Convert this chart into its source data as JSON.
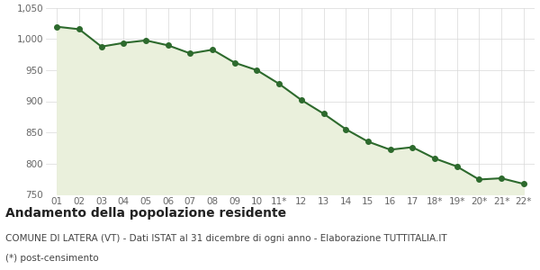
{
  "x_labels": [
    "01",
    "02",
    "03",
    "04",
    "05",
    "06",
    "07",
    "08",
    "09",
    "10",
    "11*",
    "12",
    "13",
    "14",
    "15",
    "16",
    "17",
    "18*",
    "19*",
    "20*",
    "21*",
    "22*"
  ],
  "values": [
    1020,
    1016,
    988,
    994,
    998,
    990,
    977,
    983,
    962,
    950,
    928,
    902,
    880,
    855,
    835,
    822,
    826,
    808,
    795,
    774,
    776,
    767
  ],
  "line_color": "#2d6a2d",
  "fill_color": "#eaf0dc",
  "marker": "o",
  "marker_size": 4,
  "linewidth": 1.5,
  "ylim": [
    750,
    1050
  ],
  "yticks": [
    750,
    800,
    850,
    900,
    950,
    1000,
    1050
  ],
  "title": "Andamento della popolazione residente",
  "subtitle": "COMUNE DI LATERA (VT) - Dati ISTAT al 31 dicembre di ogni anno - Elaborazione TUTTITALIA.IT",
  "footnote": "(*) post-censimento",
  "title_fontsize": 10,
  "subtitle_fontsize": 7.5,
  "footnote_fontsize": 7.5,
  "bg_color": "#ffffff",
  "grid_color": "#d8d8d8",
  "tick_label_fontsize": 7.5,
  "ytick_label_color": "#666666",
  "xtick_label_color": "#666666"
}
